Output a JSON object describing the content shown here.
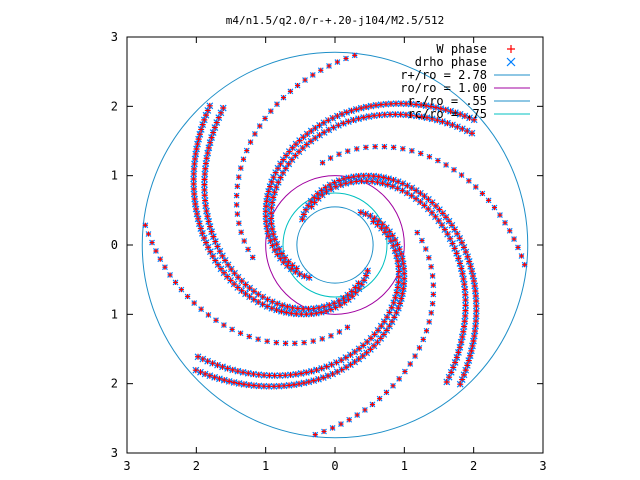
{
  "chart_data": {
    "type": "scatter",
    "title": "m4/n1.5/q2.0/r-+.20-j104/M2.5/512",
    "xlabel": "",
    "ylabel": "",
    "xlim": [
      -3,
      3
    ],
    "ylim": [
      -3,
      3
    ],
    "x_tick_values": [
      -3,
      -2,
      -1,
      0,
      1,
      2,
      3
    ],
    "x_tick_labels": [
      "3",
      "2",
      "1",
      "0",
      "1",
      "2",
      "3"
    ],
    "y_tick_values": [
      3,
      2,
      1,
      0,
      -1,
      -2,
      -3
    ],
    "y_tick_labels": [
      "3",
      "2",
      "1",
      "0",
      "1",
      "2",
      "3"
    ],
    "grid": false,
    "legend_position": "top-right",
    "spiral_arms": 4,
    "series": [
      {
        "name": "W phase",
        "marker": "plus",
        "color": "#ff0000",
        "display_type": "scatter"
      },
      {
        "name": "drho phase",
        "marker": "cross",
        "color": "#0080ff",
        "display_type": "scatter"
      },
      {
        "name": "r+/ro = 2.78",
        "shape": "circle",
        "radius": 2.78,
        "color": "#1e8fc8"
      },
      {
        "name": "ro/ro = 1.00",
        "shape": "circle",
        "radius": 1.0,
        "color": "#a000a0"
      },
      {
        "name": "r-/ro = .55",
        "shape": "circle",
        "radius": 0.55,
        "color": "#1e8fc8"
      },
      {
        "name": "rc/ro = .75",
        "shape": "circle",
        "radius": 0.75,
        "color": "#00c0c0"
      }
    ]
  }
}
